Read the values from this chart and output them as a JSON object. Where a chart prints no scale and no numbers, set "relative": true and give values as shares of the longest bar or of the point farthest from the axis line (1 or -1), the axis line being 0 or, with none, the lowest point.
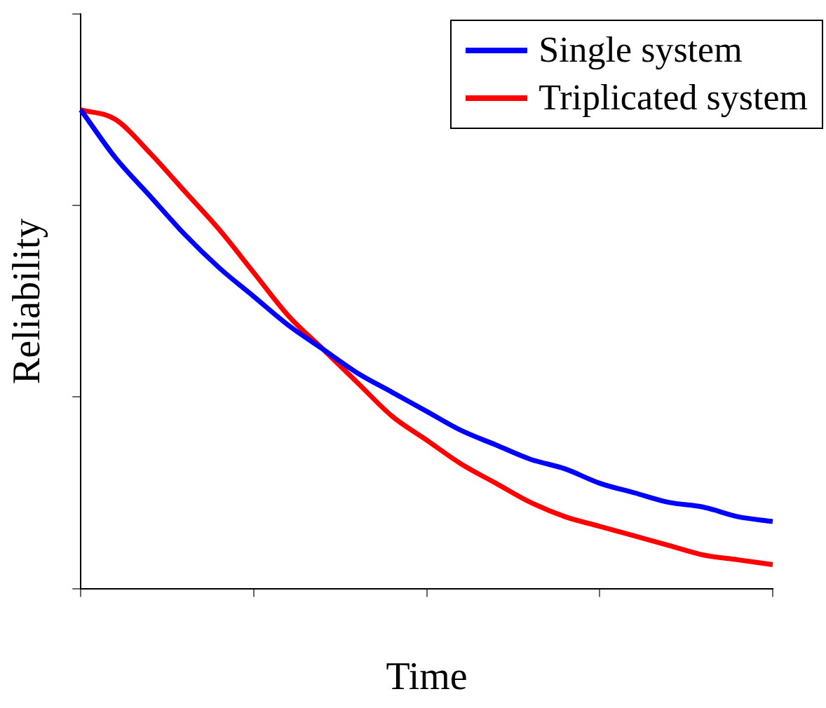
{
  "chart_data": {
    "type": "line",
    "xlabel": "Time",
    "ylabel": "Reliability",
    "relative": true,
    "legend": "top right",
    "grid": false,
    "marker": "none",
    "line_style": "solid",
    "categories": [
      null,
      null,
      null,
      null,
      null,
      null,
      null,
      null,
      null,
      null,
      null,
      null,
      null,
      null,
      null,
      null,
      null,
      null,
      null,
      null,
      null
    ],
    "series": [
      {
        "name": "Single system",
        "color": "#0000ff",
        "values": [
          1,
          0.9,
          0.82,
          0.74,
          0.67,
          0.61,
          0.55,
          0.5,
          0.45,
          0.41,
          0.37,
          0.33,
          0.3,
          0.27,
          0.25,
          0.22,
          0.2,
          0.18,
          0.17,
          0.15,
          0.14
        ]
      },
      {
        "name": "Triplicated system",
        "color": "#ff0000",
        "values": [
          1,
          0.98,
          0.91,
          0.83,
          0.75,
          0.66,
          0.57,
          0.5,
          0.43,
          0.36,
          0.31,
          0.26,
          0.22,
          0.18,
          0.15,
          0.13,
          0.11,
          0.09,
          0.07,
          0.06,
          0.05
        ]
      }
    ]
  }
}
